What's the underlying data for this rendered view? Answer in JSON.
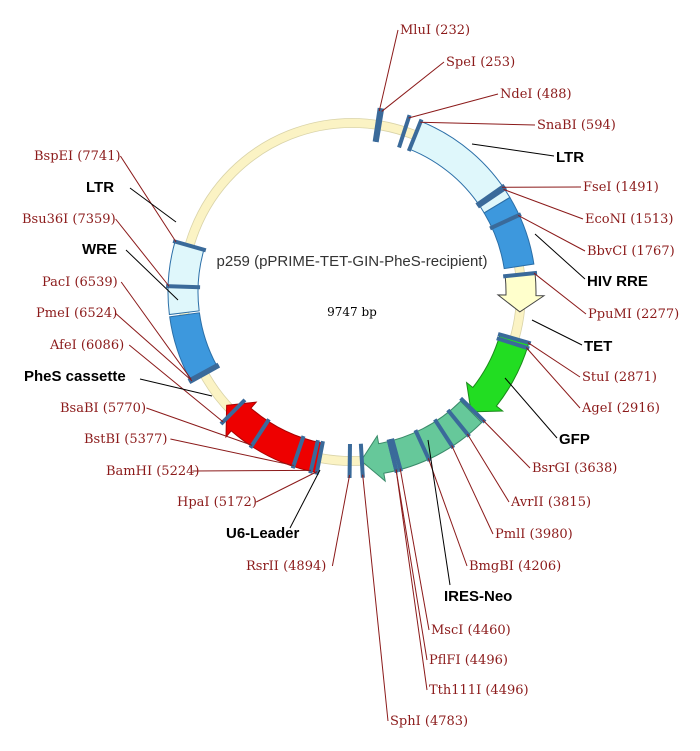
{
  "plasmid": {
    "name": "p259 (pPRIME-TET-GIN-PheS-recipient)",
    "size_bp": 9747,
    "size_label": "9747 bp"
  },
  "features": [
    {
      "id": "ltr-right",
      "label": "LTR",
      "start": 594,
      "end": 1600,
      "color": "#dff7fb",
      "stroke": "#2b6fa8",
      "arrow": false
    },
    {
      "id": "hiv-rre",
      "label": "HIV RRE",
      "start": 1600,
      "end": 2200,
      "color": "#3d98dd",
      "stroke": "#2b6fa8",
      "arrow": false
    },
    {
      "id": "tet",
      "label": "TET",
      "start": 2280,
      "end": 2620,
      "color": "#ffffcc",
      "stroke": "#444444",
      "arrow": true
    },
    {
      "id": "gfp",
      "label": "GFP",
      "start": 2880,
      "end": 3660,
      "color": "#22dd22",
      "stroke": "#1a8a1a",
      "arrow": true
    },
    {
      "id": "ires-neo",
      "label": "IRES-Neo",
      "start": 3660,
      "end": 4790,
      "color": "#66c89a",
      "stroke": "#3a8a6a",
      "arrow": true
    },
    {
      "id": "pheS",
      "label": "PheS cassette",
      "start": 5180,
      "end": 6170,
      "color": "#ee0000",
      "stroke": "#aa0000",
      "arrow": true
    },
    {
      "id": "wre",
      "label": "WRE",
      "start": 6540,
      "end": 7100,
      "color": "#3d98dd",
      "stroke": "#2b6fa8",
      "arrow": false
    },
    {
      "id": "ltr-left",
      "label": "LTR",
      "start": 7120,
      "end": 7740,
      "color": "#dff7fb",
      "stroke": "#2b6fa8",
      "arrow": false
    }
  ],
  "feature_labels": {
    "ltr_right": "LTR",
    "hiv_rre": "HIV RRE",
    "tet": "TET",
    "gfp": "GFP",
    "ires_neo": "IRES-Neo",
    "u6_leader": "U6-Leader",
    "phes": "PheS cassette",
    "wre": "WRE",
    "ltr_left": "LTR"
  },
  "sites": [
    {
      "name": "MluI",
      "pos": 232,
      "label": "MluI (232)"
    },
    {
      "name": "SpeI",
      "pos": 253,
      "label": "SpeI (253)"
    },
    {
      "name": "NdeI",
      "pos": 488,
      "label": "NdeI (488)"
    },
    {
      "name": "SnaBI",
      "pos": 594,
      "label": "SnaBI (594)"
    },
    {
      "name": "FseI",
      "pos": 1491,
      "label": "FseI (1491)"
    },
    {
      "name": "EcoNI",
      "pos": 1513,
      "label": "EcoNI (1513)"
    },
    {
      "name": "BbvCI",
      "pos": 1767,
      "label": "BbvCI (1767)"
    },
    {
      "name": "PpuMI",
      "pos": 2277,
      "label": "PpuMI (2277)"
    },
    {
      "name": "StuI",
      "pos": 2871,
      "label": "StuI (2871)"
    },
    {
      "name": "AgeI",
      "pos": 2916,
      "label": "AgeI (2916)"
    },
    {
      "name": "BsrGI",
      "pos": 3638,
      "label": "BsrGI (3638)"
    },
    {
      "name": "AvrII",
      "pos": 3815,
      "label": "AvrII (3815)"
    },
    {
      "name": "PmlI",
      "pos": 3980,
      "label": "PmlI (3980)"
    },
    {
      "name": "BmgBI",
      "pos": 4206,
      "label": "BmgBI (4206)"
    },
    {
      "name": "MscI",
      "pos": 4460,
      "label": "MscI (4460)"
    },
    {
      "name": "PflFI",
      "pos": 4496,
      "label": "PflFI (4496)"
    },
    {
      "name": "Tth111I",
      "pos": 4496,
      "label": "Tth111I (4496)"
    },
    {
      "name": "SphI",
      "pos": 4783,
      "label": "SphI (4783)"
    },
    {
      "name": "RsrII",
      "pos": 4894,
      "label": "RsrII (4894)"
    },
    {
      "name": "HpaI",
      "pos": 5172,
      "label": "HpaI (5172)"
    },
    {
      "name": "BamHI",
      "pos": 5224,
      "label": "BamHI (5224)"
    },
    {
      "name": "BstBI",
      "pos": 5377,
      "label": "BstBI (5377)"
    },
    {
      "name": "BsaBI",
      "pos": 5770,
      "label": "BsaBI (5770)"
    },
    {
      "name": "AfeI",
      "pos": 6086,
      "label": "AfeI (6086)"
    },
    {
      "name": "PmeI",
      "pos": 6524,
      "label": "PmeI (6524)"
    },
    {
      "name": "PacI",
      "pos": 6539,
      "label": "PacI (6539)"
    },
    {
      "name": "Bsu36I",
      "pos": 7359,
      "label": "Bsu36I (7359)"
    },
    {
      "name": "BspEI",
      "pos": 7741,
      "label": "BspEI (7741)"
    }
  ],
  "colors": {
    "backbone": "#fbf3c4",
    "backbone_edge": "#c8c090",
    "site_line": "#8b1a1a",
    "site_tick": "#3a6a9a"
  }
}
